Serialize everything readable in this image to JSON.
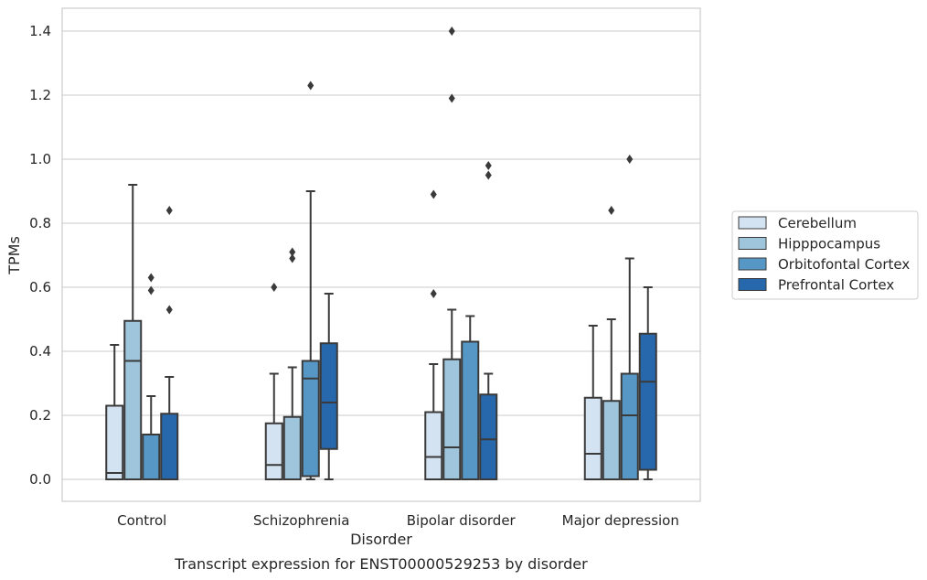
{
  "chart_data": {
    "type": "box",
    "caption": "Transcript expression for ENST00000529253 by disorder",
    "xlabel": "Disorder",
    "ylabel": "TPMs",
    "ylim": [
      -0.07,
      1.47
    ],
    "yticks": [
      0.0,
      0.2,
      0.4,
      0.6,
      0.8,
      1.0,
      1.2,
      1.4
    ],
    "ytick_labels": [
      "0.0",
      "0.2",
      "0.4",
      "0.6",
      "0.8",
      "1.0",
      "1.2",
      "1.4"
    ],
    "grid": "horizontal",
    "legend": {
      "placement": "right"
    },
    "categories": [
      "Control",
      "Schizophrenia",
      "Bipolar disorder",
      "Major depression"
    ],
    "series": [
      {
        "name": "Cerebellum",
        "color": "#d4e3f1",
        "boxes": [
          {
            "whisker_low": 0.0,
            "q1": 0.0,
            "median": 0.02,
            "q3": 0.23,
            "whisker_high": 0.42,
            "outliers": []
          },
          {
            "whisker_low": 0.0,
            "q1": 0.0,
            "median": 0.045,
            "q3": 0.175,
            "whisker_high": 0.33,
            "outliers": [
              0.6
            ]
          },
          {
            "whisker_low": 0.0,
            "q1": 0.0,
            "median": 0.07,
            "q3": 0.21,
            "whisker_high": 0.36,
            "outliers": [
              0.58,
              0.89
            ]
          },
          {
            "whisker_low": 0.0,
            "q1": 0.0,
            "median": 0.08,
            "q3": 0.255,
            "whisker_high": 0.48,
            "outliers": []
          }
        ]
      },
      {
        "name": "Hipppocampus",
        "color": "#9ec5db",
        "boxes": [
          {
            "whisker_low": 0.0,
            "q1": 0.0,
            "median": 0.37,
            "q3": 0.495,
            "whisker_high": 0.92,
            "outliers": []
          },
          {
            "whisker_low": 0.0,
            "q1": 0.0,
            "median": 0.0,
            "q3": 0.195,
            "whisker_high": 0.35,
            "outliers": [
              0.69,
              0.71
            ]
          },
          {
            "whisker_low": 0.0,
            "q1": 0.0,
            "median": 0.1,
            "q3": 0.375,
            "whisker_high": 0.53,
            "outliers": [
              1.19,
              1.4
            ]
          },
          {
            "whisker_low": 0.0,
            "q1": 0.0,
            "median": 0.0,
            "q3": 0.245,
            "whisker_high": 0.5,
            "outliers": [
              0.84
            ]
          }
        ]
      },
      {
        "name": "Orbitofontal Cortex",
        "color": "#5797c6",
        "boxes": [
          {
            "whisker_low": 0.0,
            "q1": 0.0,
            "median": 0.0,
            "q3": 0.14,
            "whisker_high": 0.26,
            "outliers": [
              0.59,
              0.63
            ]
          },
          {
            "whisker_low": 0.0,
            "q1": 0.01,
            "median": 0.315,
            "q3": 0.37,
            "whisker_high": 0.9,
            "outliers": [
              1.23
            ]
          },
          {
            "whisker_low": 0.0,
            "q1": 0.0,
            "median": 0.0,
            "q3": 0.43,
            "whisker_high": 0.51,
            "outliers": []
          },
          {
            "whisker_low": 0.0,
            "q1": 0.0,
            "median": 0.2,
            "q3": 0.33,
            "whisker_high": 0.69,
            "outliers": [
              1.0
            ]
          }
        ]
      },
      {
        "name": "Prefrontal Cortex",
        "color": "#2767ab",
        "boxes": [
          {
            "whisker_low": 0.0,
            "q1": 0.0,
            "median": 0.0,
            "q3": 0.205,
            "whisker_high": 0.32,
            "outliers": [
              0.53,
              0.84
            ]
          },
          {
            "whisker_low": 0.0,
            "q1": 0.095,
            "median": 0.24,
            "q3": 0.425,
            "whisker_high": 0.58,
            "outliers": []
          },
          {
            "whisker_low": 0.0,
            "q1": 0.0,
            "median": 0.125,
            "q3": 0.265,
            "whisker_high": 0.33,
            "outliers": [
              0.95,
              0.98
            ]
          },
          {
            "whisker_low": 0.0,
            "q1": 0.03,
            "median": 0.305,
            "q3": 0.455,
            "whisker_high": 0.6,
            "outliers": []
          }
        ]
      }
    ]
  }
}
